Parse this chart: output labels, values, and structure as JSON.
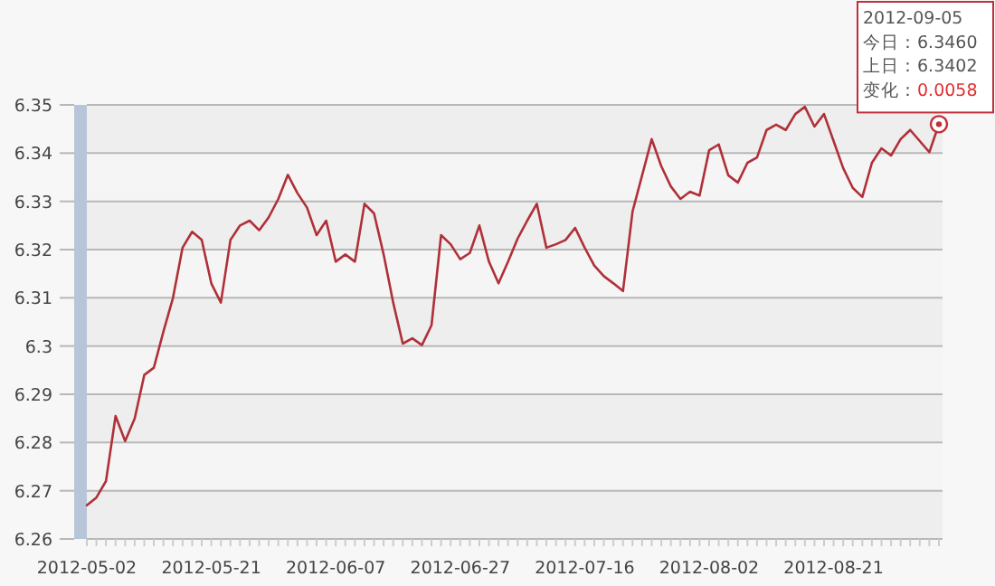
{
  "chart_data": {
    "type": "line",
    "categories": [
      "2012-05-02",
      null,
      null,
      null,
      null,
      null,
      null,
      null,
      null,
      null,
      null,
      null,
      null,
      "2012-05-21",
      null,
      null,
      null,
      null,
      null,
      null,
      null,
      null,
      null,
      null,
      null,
      null,
      "2012-06-07",
      null,
      null,
      null,
      null,
      null,
      null,
      null,
      null,
      null,
      null,
      null,
      null,
      "2012-06-27",
      null,
      null,
      null,
      null,
      null,
      null,
      null,
      null,
      null,
      null,
      null,
      null,
      "2012-07-16",
      null,
      null,
      null,
      null,
      null,
      null,
      null,
      null,
      null,
      null,
      null,
      null,
      "2012-08-02",
      null,
      null,
      null,
      null,
      null,
      null,
      null,
      null,
      null,
      null,
      null,
      null,
      "2012-08-21",
      null,
      null,
      null,
      null,
      null,
      null,
      null,
      null,
      null,
      null,
      null
    ],
    "series": [
      {
        "color": "#b03038",
        "values": [
          6.267,
          6.2686,
          6.272,
          6.2855,
          6.2803,
          6.285,
          6.294,
          6.2955,
          6.303,
          6.31,
          6.3204,
          6.3237,
          6.322,
          6.313,
          6.309,
          6.322,
          6.325,
          6.326,
          6.324,
          6.3267,
          6.3305,
          6.3355,
          6.3317,
          6.3287,
          6.323,
          6.326,
          6.3175,
          6.319,
          6.3175,
          6.3295,
          6.3275,
          6.319,
          6.309,
          6.3005,
          6.3016,
          6.3002,
          6.3043,
          6.323,
          6.3211,
          6.318,
          6.3193,
          6.325,
          6.3175,
          6.313,
          6.3175,
          6.3223,
          6.326,
          6.3295,
          6.3204,
          6.3211,
          6.322,
          6.3245,
          6.3204,
          6.3167,
          6.3145,
          6.313,
          6.3114,
          6.3279,
          6.3354,
          6.3429,
          6.3373,
          6.3331,
          6.3305,
          6.332,
          6.3312,
          6.3406,
          6.3418,
          6.3354,
          6.3339,
          6.338,
          6.3391,
          6.3448,
          6.3459,
          6.3448,
          6.3481,
          6.3496,
          6.3455,
          6.3481,
          6.3425,
          6.3369,
          6.3328,
          6.3309,
          6.338,
          6.341,
          6.3395,
          6.3429,
          6.3448,
          6.3425,
          6.3402,
          6.346
        ]
      }
    ],
    "ylim": [
      6.26,
      6.35
    ],
    "yticks": [
      6.26,
      6.27,
      6.28,
      6.29,
      6.3,
      6.31,
      6.32,
      6.33,
      6.34,
      6.35
    ],
    "grid": "y",
    "marker": "none",
    "line_style": "solid",
    "annotations": [
      "2012-09-05",
      "今日：6.3460",
      "上日：6.3402",
      "变化：0.0058"
    ]
  }
}
